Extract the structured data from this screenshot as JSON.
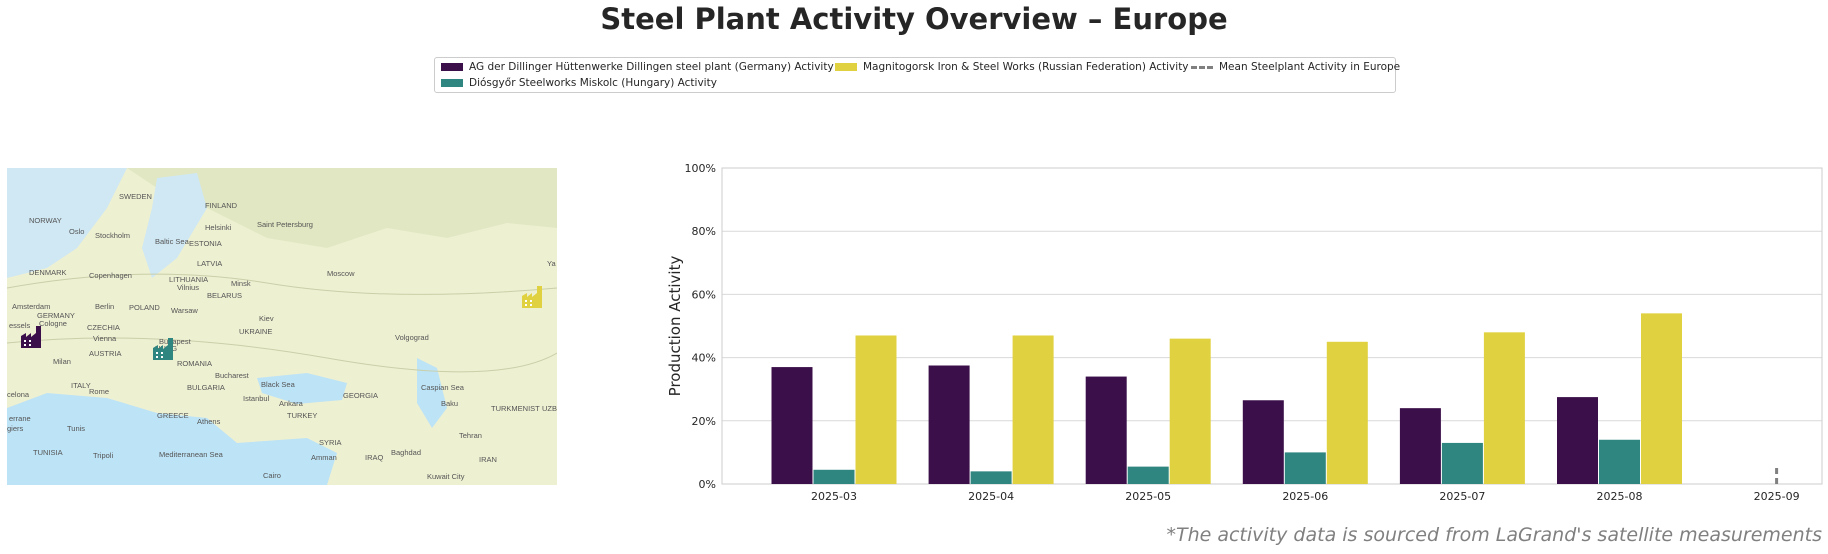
{
  "title": "Steel Plant Activity Overview – Europe",
  "legend": [
    {
      "label": "AG der Dillinger Hüttenwerke Dillingen steel plant (Germany) Activity",
      "color": "#3b0f4a",
      "kind": "bar"
    },
    {
      "label": "Diósgyőr Steelworks Miskolc (Hungary) Activity",
      "color": "#2f8580",
      "kind": "bar"
    },
    {
      "label": "Magnitogorsk Iron & Steel Works (Russian Federation) Activity",
      "color": "#e0d140",
      "kind": "bar"
    },
    {
      "label": "Mean Steelplant Activity in Europe",
      "color": "#808080",
      "kind": "dashed-line"
    }
  ],
  "map": {
    "labels": [
      "SWEDEN",
      "FINLAND",
      "NORWAY",
      "Oslo",
      "Stockholm",
      "Helsinki",
      "Saint Petersburg",
      "Baltic Sea",
      "ESTONIA",
      "LATVIA",
      "DENMARK",
      "Copenhagen",
      "LITHUANIA",
      "Vilnius",
      "Moscow",
      "Minsk",
      "BELARUS",
      "Amsterdam",
      "GERMANY",
      "Berlin",
      "POLAND",
      "Warsaw",
      "Kiev",
      "Cologne",
      "CZECHIA",
      "Vienna",
      "AUSTRIA",
      "HUNG",
      "Budapest",
      "UKRAINE",
      "Volgograd",
      "Milan",
      "ROMANIA",
      "Bucharest",
      "Black Sea",
      "ITALY",
      "Rome",
      "BULGARIA",
      "Istanbul",
      "Ankara",
      "TURKEY",
      "GEORGIA",
      "Caspian Sea",
      "Baku",
      "TURKMENIST",
      "GREECE",
      "Athens",
      "Tunis",
      "TUNISIA",
      "Tripoli",
      "Mediterranean Sea",
      "SYRIA",
      "Amman",
      "IRAQ",
      "Baghdad",
      "Tehran",
      "IRAN",
      "Cairo",
      "Kuwait City",
      "Ya",
      "celona",
      "giers",
      "errane",
      "essels",
      "UZB"
    ],
    "markers": [
      {
        "name": "Dillingen",
        "color": "#3b0f4a"
      },
      {
        "name": "Miskolc",
        "color": "#2f8580"
      },
      {
        "name": "Magnitogorsk",
        "color": "#e0d140"
      }
    ]
  },
  "chart_data": {
    "type": "bar",
    "ylabel": "Production Activity",
    "xlabel": "",
    "ylim": [
      0,
      100
    ],
    "yticks": [
      "0%",
      "20%",
      "40%",
      "60%",
      "80%",
      "100%"
    ],
    "categories": [
      "2025-03",
      "2025-04",
      "2025-05",
      "2025-06",
      "2025-07",
      "2025-08",
      "2025-09"
    ],
    "grid": true,
    "series": [
      {
        "name": "AG der Dillinger Hüttenwerke Dillingen steel plant (Germany) Activity",
        "color": "#3b0f4a",
        "values": [
          37,
          37.5,
          34,
          26.5,
          24,
          27.5,
          null
        ]
      },
      {
        "name": "Diósgyőr Steelworks Miskolc (Hungary) Activity",
        "color": "#2f8580",
        "values": [
          4.5,
          4,
          5.5,
          10,
          13,
          14,
          null
        ]
      },
      {
        "name": "Magnitogorsk Iron & Steel Works (Russian Federation) Activity",
        "color": "#e0d140",
        "values": [
          47,
          47,
          46,
          45,
          48,
          54,
          null
        ]
      }
    ],
    "mean_line": {
      "name": "Mean Steelplant Activity in Europe",
      "color": "#808080",
      "x": "2025-09",
      "values": [
        0,
        6
      ]
    }
  },
  "footnote": "*The activity data is sourced from LaGrand's satellite measurements"
}
